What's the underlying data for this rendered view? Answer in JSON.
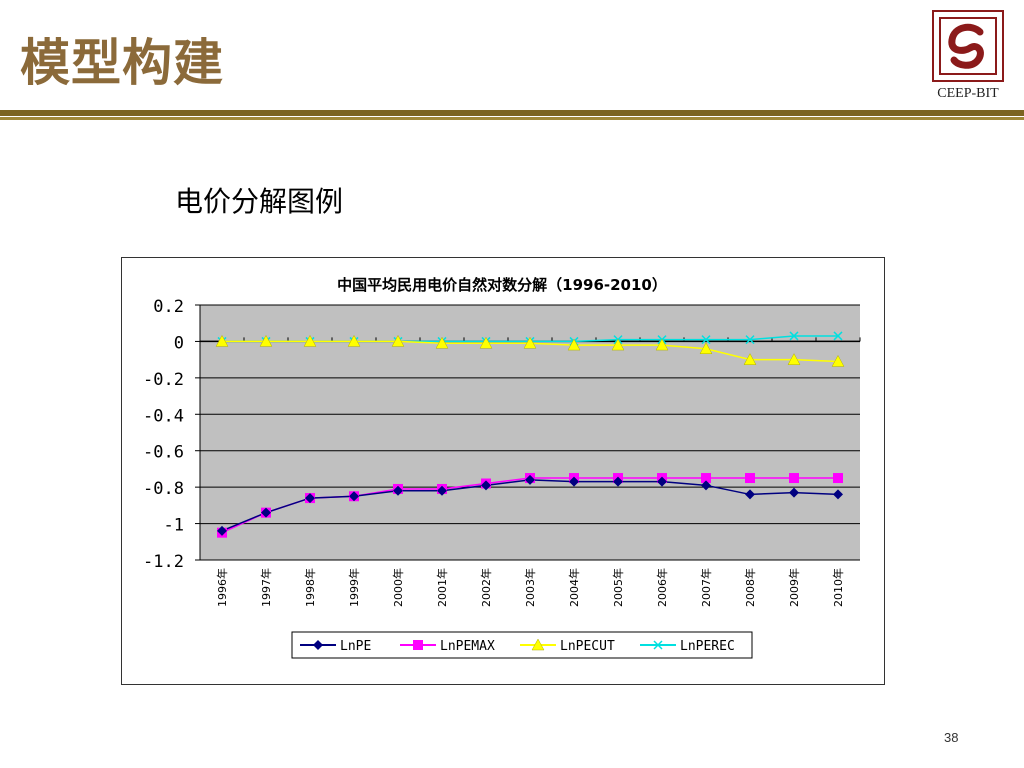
{
  "slide": {
    "title": "模型构建",
    "subtitle": "电价分解图例",
    "page_number": "38",
    "logo_text": "CEEP-BIT"
  },
  "colors": {
    "title": "#8b6a3a",
    "rule": "#7b6320",
    "plot_bg": "#c0c0c0",
    "logo": "#8b1a1a"
  },
  "chart_data": {
    "type": "line",
    "title": "中国平均民用电价自然对数分解（1996-2010）",
    "categories": [
      "1996年",
      "1997年",
      "1998年",
      "1999年",
      "2000年",
      "2001年",
      "2002年",
      "2003年",
      "2004年",
      "2005年",
      "2006年",
      "2007年",
      "2008年",
      "2009年",
      "2010年"
    ],
    "yticks": [
      "0.2",
      "0",
      "-0.2",
      "-0.4",
      "-0.6",
      "-0.8",
      "-1",
      "-1.2"
    ],
    "ylim": [
      -1.2,
      0.2
    ],
    "grid": true,
    "legend": "bottom",
    "series": [
      {
        "name": "LnPE",
        "color": "#000080",
        "marker": "diamond",
        "values": [
          -1.04,
          -0.94,
          -0.86,
          -0.85,
          -0.82,
          -0.82,
          -0.79,
          -0.76,
          -0.77,
          -0.77,
          -0.77,
          -0.79,
          -0.84,
          -0.83,
          -0.84
        ]
      },
      {
        "name": "LnPEMAX",
        "color": "#ff00ff",
        "marker": "square",
        "values": [
          -1.05,
          -0.94,
          -0.86,
          -0.85,
          -0.81,
          -0.81,
          -0.78,
          -0.75,
          -0.75,
          -0.75,
          -0.75,
          -0.75,
          -0.75,
          -0.75,
          -0.75
        ]
      },
      {
        "name": "LnPECUT",
        "color": "#ffff00",
        "marker": "triangle",
        "values": [
          0.0,
          0.0,
          0.0,
          0.0,
          0.0,
          -0.01,
          -0.01,
          -0.01,
          -0.02,
          -0.02,
          -0.02,
          -0.04,
          -0.1,
          -0.1,
          -0.11
        ]
      },
      {
        "name": "LnPEREC",
        "color": "#00e0e0",
        "marker": "x",
        "values": [
          0.0,
          0.0,
          0.0,
          0.0,
          0.0,
          0.0,
          0.0,
          0.0,
          0.0,
          0.01,
          0.01,
          0.01,
          0.01,
          0.03,
          0.03
        ]
      }
    ]
  }
}
